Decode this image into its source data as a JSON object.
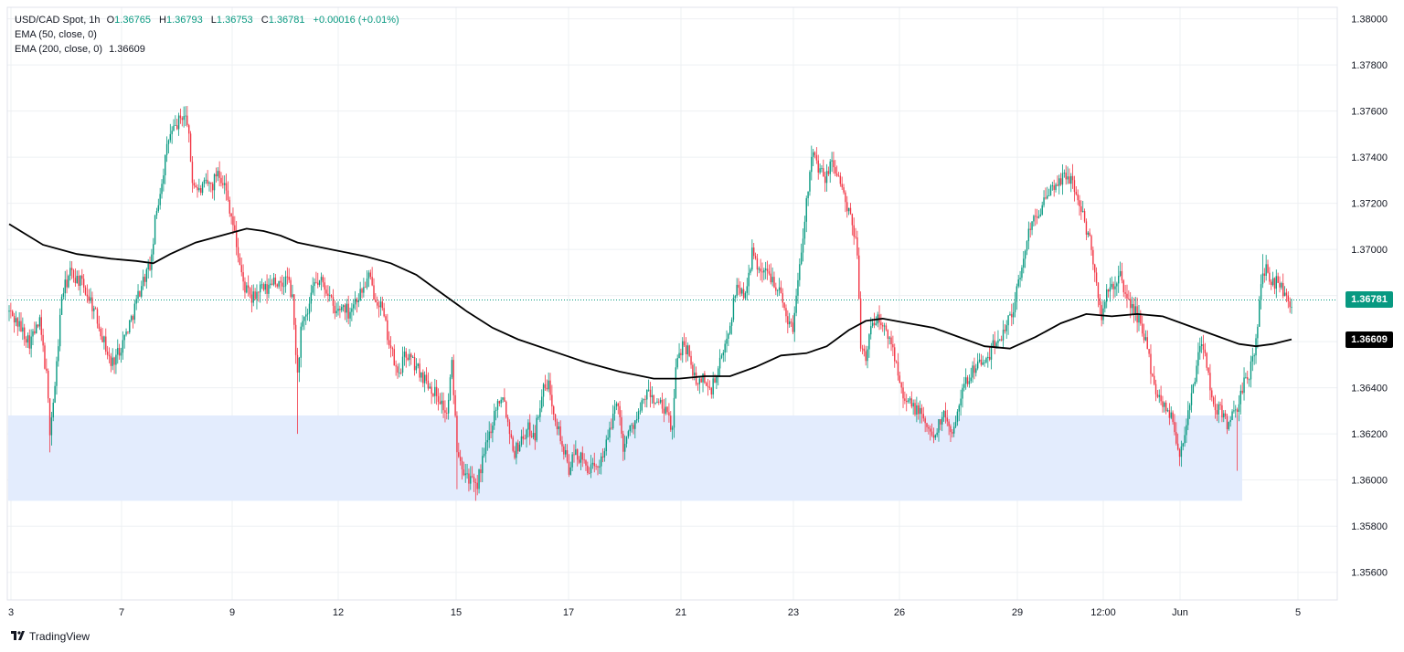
{
  "legend": {
    "symbol": "USD/CAD Spot, 1h",
    "open_label": "O",
    "open": "1.36765",
    "high_label": "H",
    "high": "1.36793",
    "low_label": "L",
    "low": "1.36753",
    "close_label": "C",
    "close": "1.36781",
    "change": "+0.00016 (+0.01%)",
    "ema50_label": "EMA (50, close, 0)",
    "ema200_label": "EMA (200, close, 0)",
    "ema200_value": "1.36609"
  },
  "footer": {
    "brand": "TradingView"
  },
  "colors": {
    "up": "#089981",
    "down": "#f23645",
    "ema": "#000000",
    "zone": "#e3ecfd",
    "grid": "#eef0f3",
    "price_tag": "#089981",
    "ema_tag": "#000000"
  },
  "chart_data": {
    "type": "candlestick",
    "instrument": "USD/CAD Spot",
    "timeframe": "1h",
    "ylim": [
      1.3548,
      1.3805
    ],
    "y_ticks": [
      "1.38000",
      "1.37800",
      "1.37600",
      "1.37400",
      "1.37200",
      "1.37000",
      "1.36800",
      "1.36600",
      "1.36400",
      "1.36200",
      "1.36000",
      "1.35800",
      "1.35600"
    ],
    "x_ticks": [
      "3",
      "7",
      "9",
      "12",
      "15",
      "17",
      "21",
      "23",
      "26",
      "29",
      "12:00",
      "Jun",
      "5"
    ],
    "last_price": "1.36781",
    "ema200_last": "1.36609",
    "support_zone": {
      "from": 1.3591,
      "to": 1.3628
    },
    "price_path": [
      [
        0,
        1.3673
      ],
      [
        5,
        1.3668
      ],
      [
        12,
        1.366
      ],
      [
        18,
        1.3668
      ],
      [
        22,
        1.3645
      ],
      [
        24,
        1.3622
      ],
      [
        27,
        1.364
      ],
      [
        31,
        1.368
      ],
      [
        36,
        1.369
      ],
      [
        42,
        1.3686
      ],
      [
        48,
        1.3678
      ],
      [
        54,
        1.3665
      ],
      [
        60,
        1.365
      ],
      [
        66,
        1.3658
      ],
      [
        72,
        1.367
      ],
      [
        78,
        1.3685
      ],
      [
        84,
        1.3695
      ],
      [
        86,
        1.3712
      ],
      [
        90,
        1.373
      ],
      [
        94,
        1.3748
      ],
      [
        98,
        1.3753
      ],
      [
        102,
        1.3758
      ],
      [
        105,
        1.3756
      ],
      [
        108,
        1.373
      ],
      [
        112,
        1.3725
      ],
      [
        116,
        1.3728
      ],
      [
        120,
        1.3728
      ],
      [
        123,
        1.3735
      ],
      [
        127,
        1.3728
      ],
      [
        131,
        1.3715
      ],
      [
        134,
        1.3702
      ],
      [
        138,
        1.3685
      ],
      [
        143,
        1.3678
      ],
      [
        148,
        1.3683
      ],
      [
        152,
        1.3682
      ],
      [
        156,
        1.3688
      ],
      [
        160,
        1.3683
      ],
      [
        164,
        1.3688
      ],
      [
        167,
        1.3678
      ],
      [
        170,
        1.3645
      ],
      [
        172,
        1.3665
      ],
      [
        176,
        1.3672
      ],
      [
        180,
        1.3685
      ],
      [
        184,
        1.3686
      ],
      [
        188,
        1.3682
      ],
      [
        192,
        1.3672
      ],
      [
        197,
        1.3676
      ],
      [
        200,
        1.3673
      ],
      [
        204,
        1.3678
      ],
      [
        208,
        1.3682
      ],
      [
        212,
        1.3688
      ],
      [
        215,
        1.3681
      ],
      [
        219,
        1.3676
      ],
      [
        224,
        1.366
      ],
      [
        229,
        1.3645
      ],
      [
        234,
        1.3655
      ],
      [
        239,
        1.365
      ],
      [
        244,
        1.3645
      ],
      [
        249,
        1.364
      ],
      [
        254,
        1.3635
      ],
      [
        258,
        1.3628
      ],
      [
        261,
        1.365
      ],
      [
        264,
        1.3615
      ],
      [
        268,
        1.3605
      ],
      [
        272,
        1.36
      ],
      [
        275,
        1.3596
      ],
      [
        279,
        1.3608
      ],
      [
        283,
        1.362
      ],
      [
        287,
        1.3632
      ],
      [
        291,
        1.3638
      ],
      [
        294,
        1.3625
      ],
      [
        298,
        1.3612
      ],
      [
        302,
        1.3618
      ],
      [
        306,
        1.3622
      ],
      [
        310,
        1.362
      ],
      [
        314,
        1.3638
      ],
      [
        318,
        1.3641
      ],
      [
        322,
        1.3628
      ],
      [
        326,
        1.3615
      ],
      [
        330,
        1.3605
      ],
      [
        334,
        1.3612
      ],
      [
        338,
        1.3608
      ],
      [
        342,
        1.3605
      ],
      [
        346,
        1.3604
      ],
      [
        350,
        1.3612
      ],
      [
        354,
        1.362
      ],
      [
        358,
        1.3636
      ],
      [
        362,
        1.3615
      ],
      [
        366,
        1.3622
      ],
      [
        371,
        1.3628
      ],
      [
        376,
        1.3638
      ],
      [
        380,
        1.3635
      ],
      [
        384,
        1.3632
      ],
      [
        388,
        1.3628
      ],
      [
        391,
        1.3622
      ],
      [
        393,
        1.3648
      ],
      [
        397,
        1.366
      ],
      [
        401,
        1.3655
      ],
      [
        405,
        1.364
      ],
      [
        409,
        1.3645
      ],
      [
        413,
        1.3638
      ],
      [
        417,
        1.3645
      ],
      [
        421,
        1.3655
      ],
      [
        425,
        1.3668
      ],
      [
        429,
        1.3685
      ],
      [
        433,
        1.368
      ],
      [
        436,
        1.369
      ],
      [
        438,
        1.3698
      ],
      [
        442,
        1.3692
      ],
      [
        446,
        1.369
      ],
      [
        450,
        1.3688
      ],
      [
        454,
        1.3682
      ],
      [
        458,
        1.3672
      ],
      [
        462,
        1.3665
      ],
      [
        466,
        1.3695
      ],
      [
        470,
        1.372
      ],
      [
        473,
        1.3743
      ],
      [
        477,
        1.3735
      ],
      [
        481,
        1.373
      ],
      [
        485,
        1.3738
      ],
      [
        489,
        1.3732
      ],
      [
        493,
        1.372
      ],
      [
        497,
        1.371
      ],
      [
        500,
        1.37
      ],
      [
        502,
        1.366
      ],
      [
        505,
        1.365
      ],
      [
        508,
        1.3668
      ],
      [
        512,
        1.367
      ],
      [
        516,
        1.3665
      ],
      [
        520,
        1.366
      ],
      [
        524,
        1.3648
      ],
      [
        528,
        1.3635
      ],
      [
        532,
        1.3632
      ],
      [
        536,
        1.363
      ],
      [
        540,
        1.3625
      ],
      [
        544,
        1.3618
      ],
      [
        548,
        1.3625
      ],
      [
        552,
        1.3628
      ],
      [
        556,
        1.362
      ],
      [
        560,
        1.3635
      ],
      [
        564,
        1.3642
      ],
      [
        568,
        1.3648
      ],
      [
        572,
        1.3652
      ],
      [
        576,
        1.365
      ],
      [
        580,
        1.3658
      ],
      [
        584,
        1.3662
      ],
      [
        588,
        1.3668
      ],
      [
        592,
        1.3675
      ],
      [
        596,
        1.3688
      ],
      [
        600,
        1.3705
      ],
      [
        604,
        1.3715
      ],
      [
        608,
        1.3718
      ],
      [
        612,
        1.3722
      ],
      [
        616,
        1.3728
      ],
      [
        620,
        1.373
      ],
      [
        624,
        1.3733
      ],
      [
        627,
        1.3728
      ],
      [
        630,
        1.3722
      ],
      [
        634,
        1.3712
      ],
      [
        638,
        1.37
      ],
      [
        641,
        1.3685
      ],
      [
        644,
        1.367
      ],
      [
        647,
        1.368
      ],
      [
        651,
        1.3685
      ],
      [
        655,
        1.3688
      ],
      [
        658,
        1.368
      ],
      [
        662,
        1.3675
      ],
      [
        666,
        1.367
      ],
      [
        670,
        1.366
      ],
      [
        674,
        1.3645
      ],
      [
        678,
        1.3635
      ],
      [
        682,
        1.3632
      ],
      [
        685,
        1.3628
      ],
      [
        688,
        1.3618
      ],
      [
        690,
        1.361
      ],
      [
        693,
        1.3622
      ],
      [
        697,
        1.3635
      ],
      [
        700,
        1.365
      ],
      [
        703,
        1.366
      ],
      [
        706,
        1.365
      ],
      [
        709,
        1.3635
      ],
      [
        712,
        1.363
      ],
      [
        715,
        1.363
      ],
      [
        718,
        1.3625
      ],
      [
        721,
        1.3628
      ],
      [
        724,
        1.3628
      ],
      [
        727,
        1.364
      ],
      [
        731,
        1.3646
      ],
      [
        735,
        1.366
      ],
      [
        738,
        1.3685
      ],
      [
        741,
        1.3692
      ],
      [
        744,
        1.3686
      ],
      [
        747,
        1.3686
      ],
      [
        750,
        1.3685
      ],
      [
        753,
        1.3678
      ],
      [
        756,
        1.3678
      ]
    ],
    "ema200_path": [
      [
        0,
        1.3711
      ],
      [
        20,
        1.3702
      ],
      [
        40,
        1.3698
      ],
      [
        60,
        1.3696
      ],
      [
        75,
        1.3695
      ],
      [
        85,
        1.3694
      ],
      [
        95,
        1.3698
      ],
      [
        110,
        1.3703
      ],
      [
        125,
        1.3706
      ],
      [
        140,
        1.3709
      ],
      [
        150,
        1.3708
      ],
      [
        160,
        1.3706
      ],
      [
        170,
        1.3703
      ],
      [
        190,
        1.37
      ],
      [
        210,
        1.3697
      ],
      [
        225,
        1.3694
      ],
      [
        240,
        1.3689
      ],
      [
        255,
        1.3681
      ],
      [
        270,
        1.3673
      ],
      [
        285,
        1.3666
      ],
      [
        300,
        1.3661
      ],
      [
        320,
        1.3656
      ],
      [
        340,
        1.3651
      ],
      [
        360,
        1.3647
      ],
      [
        380,
        1.3644
      ],
      [
        395,
        1.3644
      ],
      [
        410,
        1.3645
      ],
      [
        425,
        1.3645
      ],
      [
        440,
        1.3649
      ],
      [
        455,
        1.3654
      ],
      [
        470,
        1.3655
      ],
      [
        482,
        1.3658
      ],
      [
        495,
        1.3665
      ],
      [
        505,
        1.3669
      ],
      [
        515,
        1.367
      ],
      [
        530,
        1.3668
      ],
      [
        545,
        1.3666
      ],
      [
        560,
        1.3662
      ],
      [
        575,
        1.3658
      ],
      [
        590,
        1.3657
      ],
      [
        605,
        1.3662
      ],
      [
        620,
        1.3668
      ],
      [
        635,
        1.3672
      ],
      [
        650,
        1.3671
      ],
      [
        665,
        1.3672
      ],
      [
        680,
        1.3671
      ],
      [
        695,
        1.3667
      ],
      [
        710,
        1.3663
      ],
      [
        725,
        1.3659
      ],
      [
        735,
        1.3658
      ],
      [
        745,
        1.3659
      ],
      [
        756,
        1.3661
      ]
    ]
  }
}
